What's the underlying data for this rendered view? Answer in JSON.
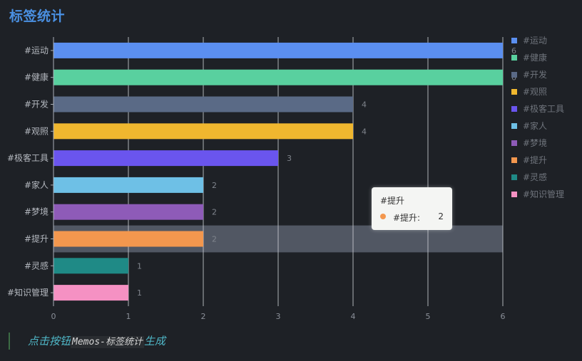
{
  "page_title": "标签统计",
  "footer": {
    "prefix": "点击按钮",
    "code": "Memos-标签统计",
    "suffix": "生成"
  },
  "tooltip": {
    "title": "#提升",
    "series_name": "#提升:",
    "value": "2",
    "color": "#f3974e"
  },
  "chart_data": {
    "type": "bar",
    "orientation": "horizontal",
    "categories": [
      "#运动",
      "#健康",
      "#开发",
      "#观照",
      "#极客工具",
      "#家人",
      "#梦境",
      "#提升",
      "#灵感",
      "#知识管理"
    ],
    "values": [
      6,
      6,
      4,
      4,
      3,
      2,
      2,
      2,
      1,
      1
    ],
    "colors": [
      "#5b8ff0",
      "#59d09f",
      "#5a6a86",
      "#f0b72f",
      "#6a55ee",
      "#6ec0e6",
      "#8e5bb8",
      "#f3974e",
      "#1f8a86",
      "#f591c3"
    ],
    "x_ticks": [
      "0",
      "1",
      "2",
      "3",
      "4",
      "5",
      "6"
    ],
    "xlim": [
      0,
      6
    ],
    "grid": true,
    "legend": {
      "position": "right",
      "entries": [
        "#运动",
        "#健康",
        "#开发",
        "#观照",
        "#极客工具",
        "#家人",
        "#梦境",
        "#提升",
        "#灵感",
        "#知识管理"
      ]
    },
    "highlighted_category": "#提升"
  }
}
